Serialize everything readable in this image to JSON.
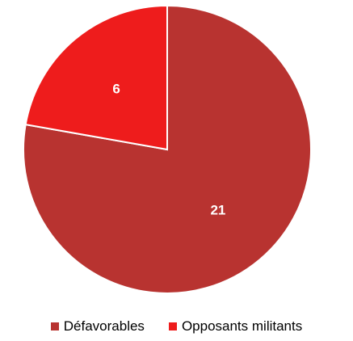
{
  "chart_data": {
    "type": "pie",
    "categories": [
      "Défavorables",
      "Opposants militants"
    ],
    "values": [
      21,
      6
    ],
    "colors": [
      "#b83330",
      "#ee1c1c"
    ],
    "data_labels": [
      "21",
      "6"
    ],
    "legend_position": "bottom"
  }
}
